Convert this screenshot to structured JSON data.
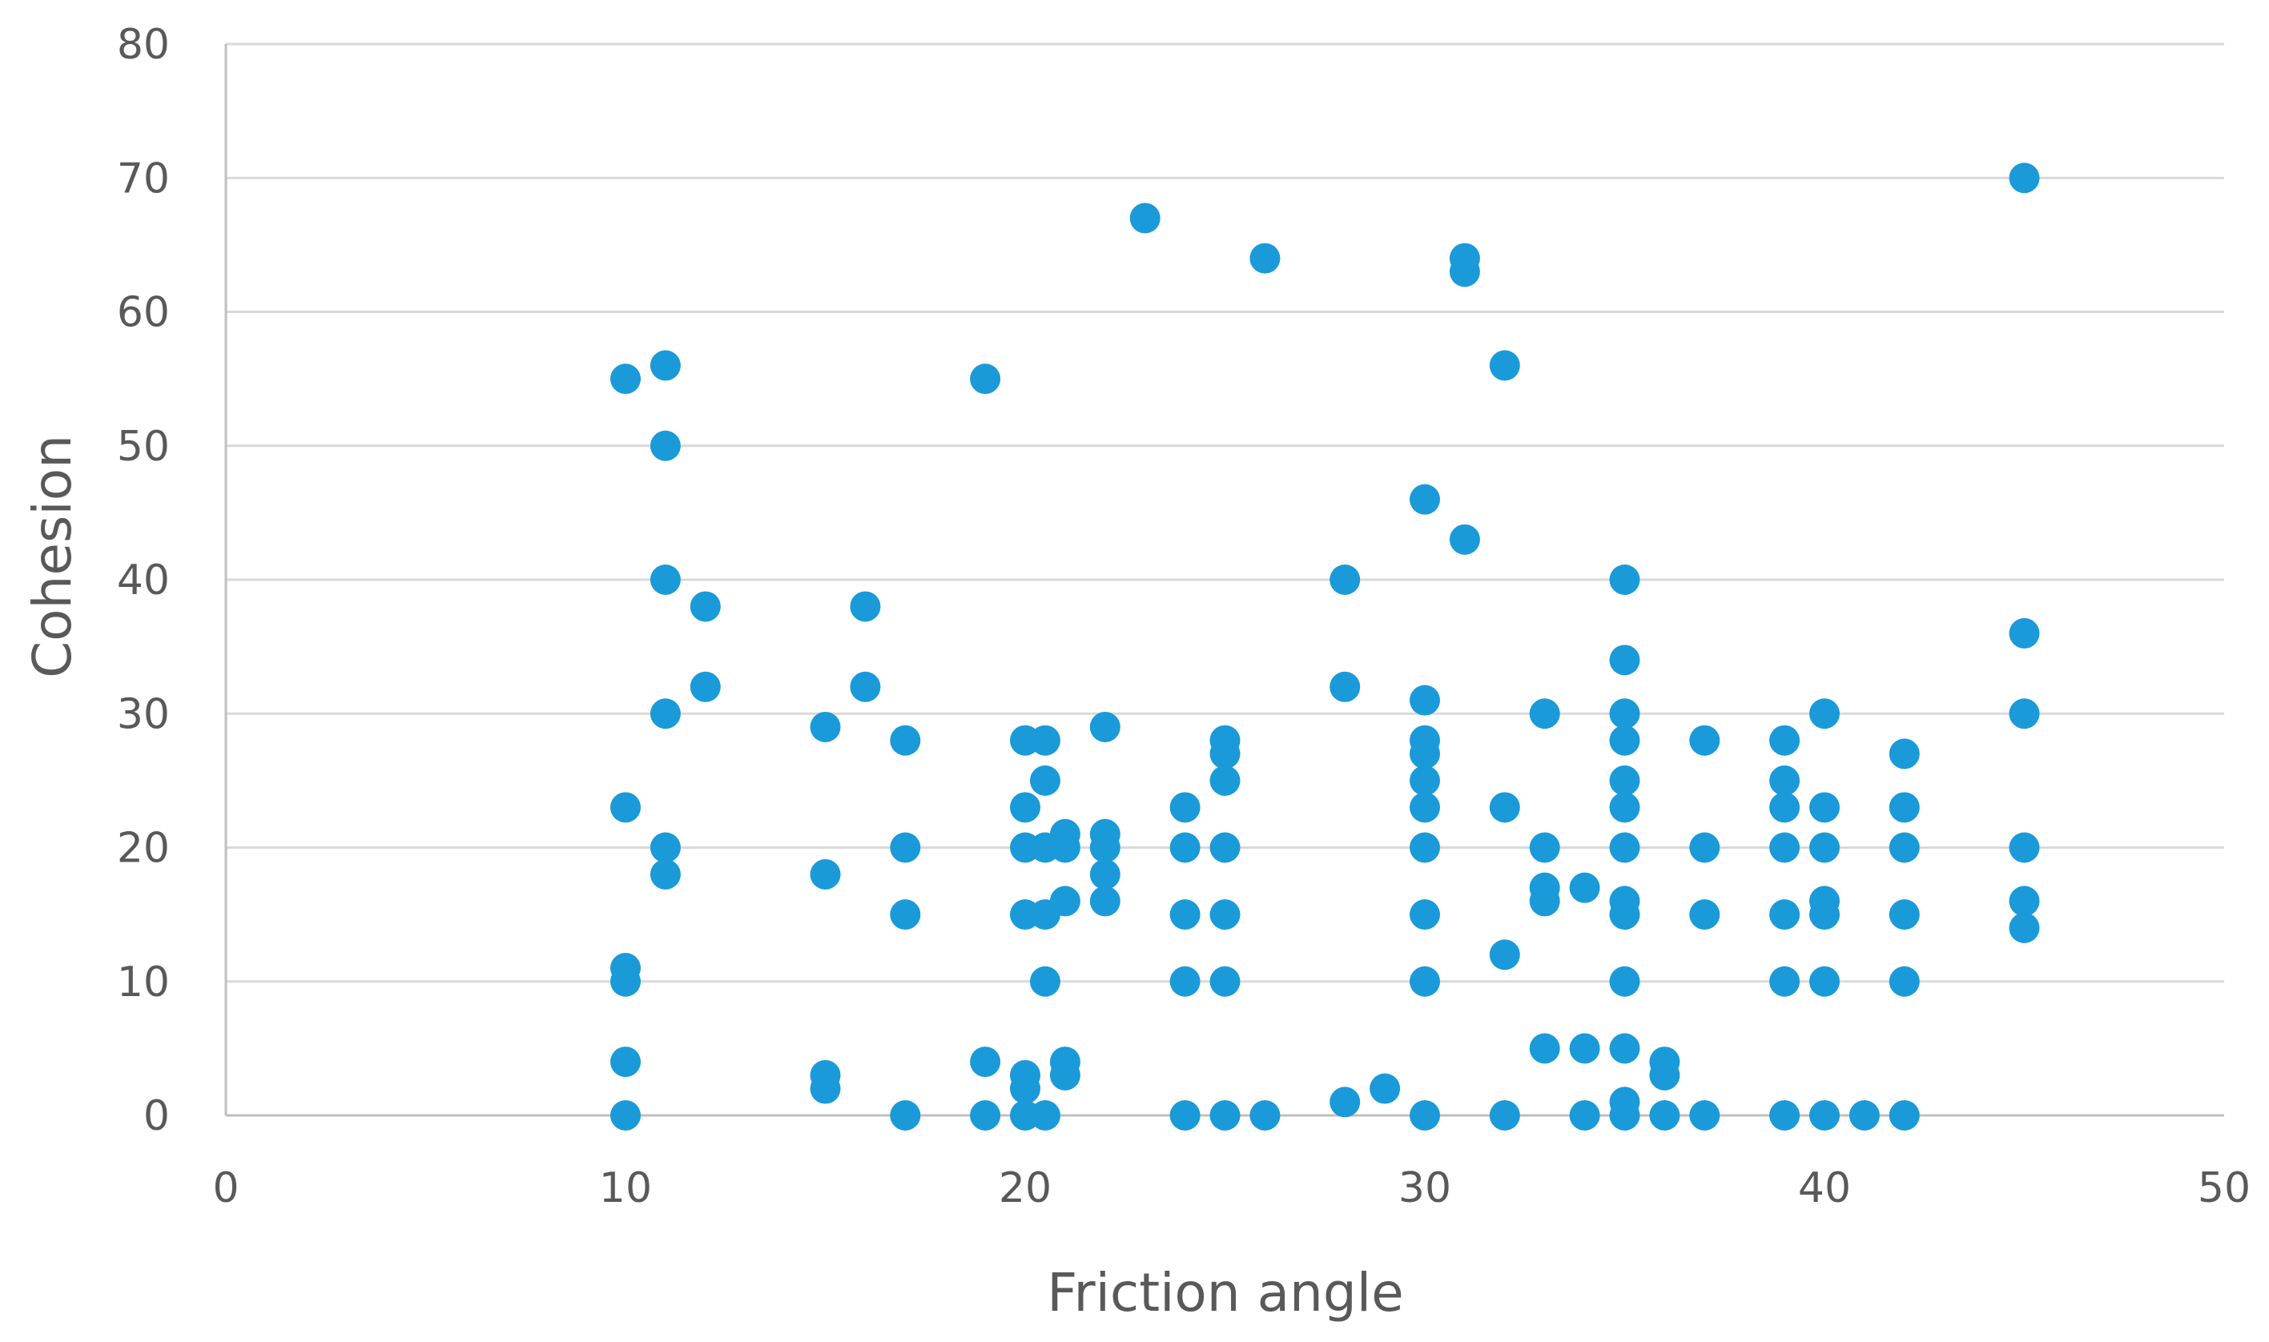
{
  "chart_data": {
    "type": "scatter",
    "xlabel": "Friction angle",
    "ylabel": "Cohesion",
    "xlim": [
      0,
      50
    ],
    "ylim": [
      0,
      80
    ],
    "xticks": [
      "0",
      "10",
      "20",
      "30",
      "40",
      "50"
    ],
    "yticks": [
      "0",
      "10",
      "20",
      "30",
      "40",
      "50",
      "60",
      "70",
      "80"
    ],
    "grid": "horizontal",
    "legend": "none",
    "colors": {
      "point": "#1a9ad9",
      "gridline": "#d9d9d9",
      "axis": "#bfbfbf",
      "text": "#595959"
    },
    "series": [
      {
        "points": [
          [
            10,
            55
          ],
          [
            10,
            23
          ],
          [
            10,
            11
          ],
          [
            10,
            10
          ],
          [
            10,
            4
          ],
          [
            10,
            0
          ],
          [
            11,
            56
          ],
          [
            11,
            50
          ],
          [
            11,
            40
          ],
          [
            11,
            30
          ],
          [
            11,
            20
          ],
          [
            11,
            18
          ],
          [
            12,
            38
          ],
          [
            12,
            32
          ],
          [
            15,
            29
          ],
          [
            15,
            18
          ],
          [
            15,
            3
          ],
          [
            15,
            2
          ],
          [
            16,
            38
          ],
          [
            16,
            32
          ],
          [
            17,
            28
          ],
          [
            17,
            20
          ],
          [
            17,
            15
          ],
          [
            17,
            0
          ],
          [
            19,
            55
          ],
          [
            19,
            4
          ],
          [
            19,
            0
          ],
          [
            20,
            28
          ],
          [
            20,
            23
          ],
          [
            20,
            20
          ],
          [
            20,
            15
          ],
          [
            20,
            3
          ],
          [
            20,
            2
          ],
          [
            20,
            0
          ],
          [
            20.5,
            28
          ],
          [
            20.5,
            25
          ],
          [
            20.5,
            20
          ],
          [
            20.5,
            15
          ],
          [
            20.5,
            10
          ],
          [
            20.5,
            0
          ],
          [
            21,
            21
          ],
          [
            21,
            20
          ],
          [
            21,
            16
          ],
          [
            21,
            4
          ],
          [
            21,
            3
          ],
          [
            22,
            29
          ],
          [
            22,
            21
          ],
          [
            22,
            20
          ],
          [
            22,
            18
          ],
          [
            22,
            16
          ],
          [
            23,
            67
          ],
          [
            24,
            23
          ],
          [
            24,
            20
          ],
          [
            24,
            15
          ],
          [
            24,
            10
          ],
          [
            24,
            0
          ],
          [
            25,
            28
          ],
          [
            25,
            27
          ],
          [
            25,
            25
          ],
          [
            25,
            20
          ],
          [
            25,
            15
          ],
          [
            25,
            10
          ],
          [
            25,
            0
          ],
          [
            26,
            64
          ],
          [
            26,
            0
          ],
          [
            28,
            40
          ],
          [
            28,
            32
          ],
          [
            28,
            1
          ],
          [
            29,
            2
          ],
          [
            30,
            46
          ],
          [
            30,
            31
          ],
          [
            30,
            28
          ],
          [
            30,
            27
          ],
          [
            30,
            25
          ],
          [
            30,
            23
          ],
          [
            30,
            20
          ],
          [
            30,
            15
          ],
          [
            30,
            10
          ],
          [
            30,
            0
          ],
          [
            31,
            64
          ],
          [
            31,
            63
          ],
          [
            31,
            43
          ],
          [
            32,
            56
          ],
          [
            32,
            23
          ],
          [
            32,
            12
          ],
          [
            32,
            0
          ],
          [
            33,
            30
          ],
          [
            33,
            20
          ],
          [
            33,
            17
          ],
          [
            33,
            16
          ],
          [
            33,
            5
          ],
          [
            34,
            17
          ],
          [
            34,
            5
          ],
          [
            34,
            0
          ],
          [
            35,
            40
          ],
          [
            35,
            34
          ],
          [
            35,
            30
          ],
          [
            35,
            28
          ],
          [
            35,
            25
          ],
          [
            35,
            23
          ],
          [
            35,
            20
          ],
          [
            35,
            16
          ],
          [
            35,
            15
          ],
          [
            35,
            10
          ],
          [
            35,
            5
          ],
          [
            35,
            1
          ],
          [
            35,
            0
          ],
          [
            36,
            4
          ],
          [
            36,
            3
          ],
          [
            36,
            0
          ],
          [
            37,
            28
          ],
          [
            37,
            20
          ],
          [
            37,
            15
          ],
          [
            37,
            0
          ],
          [
            39,
            28
          ],
          [
            39,
            25
          ],
          [
            39,
            23
          ],
          [
            39,
            20
          ],
          [
            39,
            15
          ],
          [
            39,
            10
          ],
          [
            39,
            0
          ],
          [
            40,
            30
          ],
          [
            40,
            23
          ],
          [
            40,
            20
          ],
          [
            40,
            16
          ],
          [
            40,
            15
          ],
          [
            40,
            10
          ],
          [
            40,
            0
          ],
          [
            41,
            0
          ],
          [
            42,
            27
          ],
          [
            42,
            23
          ],
          [
            42,
            20
          ],
          [
            42,
            15
          ],
          [
            42,
            10
          ],
          [
            42,
            0
          ],
          [
            45,
            70
          ],
          [
            45,
            36
          ],
          [
            45,
            30
          ],
          [
            45,
            20
          ],
          [
            45,
            16
          ],
          [
            45,
            14
          ]
        ]
      }
    ]
  }
}
